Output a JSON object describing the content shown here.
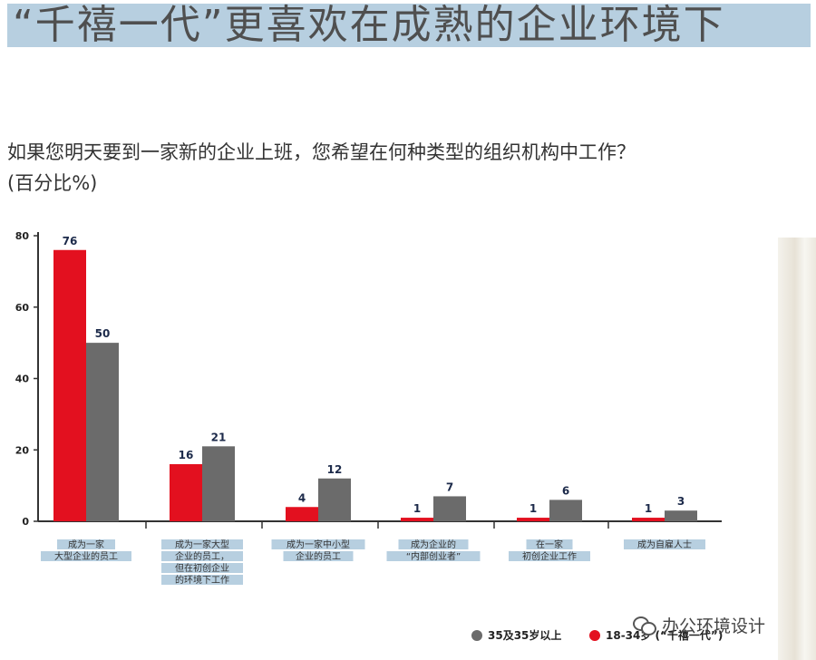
{
  "headline": "“千禧一代”更喜欢在成熟的企业环境下",
  "question": "如果您明天要到一家新的企业上班，您希望在何种类型的组织机构中工作？",
  "unit": "(百分比%)",
  "watermark": "办公环境设计",
  "colors": {
    "red": "#e3101f",
    "gray": "#6b6b6b",
    "label_band": "#b7cfe0",
    "axis": "#333333"
  },
  "chart_data": {
    "type": "bar",
    "ylim": [
      0,
      80
    ],
    "yticks": [
      0,
      20,
      40,
      60,
      80
    ],
    "categories": [
      [
        "成为一家",
        "大型企业的员工"
      ],
      [
        "成为一家大型",
        "企业的员工，",
        "但在初创企业",
        "的环境下工作"
      ],
      [
        "成为一家中小型",
        "企业的员工"
      ],
      [
        "成为企业的",
        "“内部创业者”"
      ],
      [
        "在一家",
        "初创企业工作"
      ],
      [
        "成为自雇人士"
      ]
    ],
    "series": [
      {
        "name": "18-34岁 (“千禧一代”)",
        "color": "#e3101f",
        "values": [
          76,
          16,
          4,
          1,
          1,
          1
        ]
      },
      {
        "name": "35及35岁以上",
        "color": "#6b6b6b",
        "values": [
          50,
          21,
          12,
          7,
          6,
          3
        ]
      }
    ],
    "legend_position": "bottom-right",
    "grid": false
  }
}
